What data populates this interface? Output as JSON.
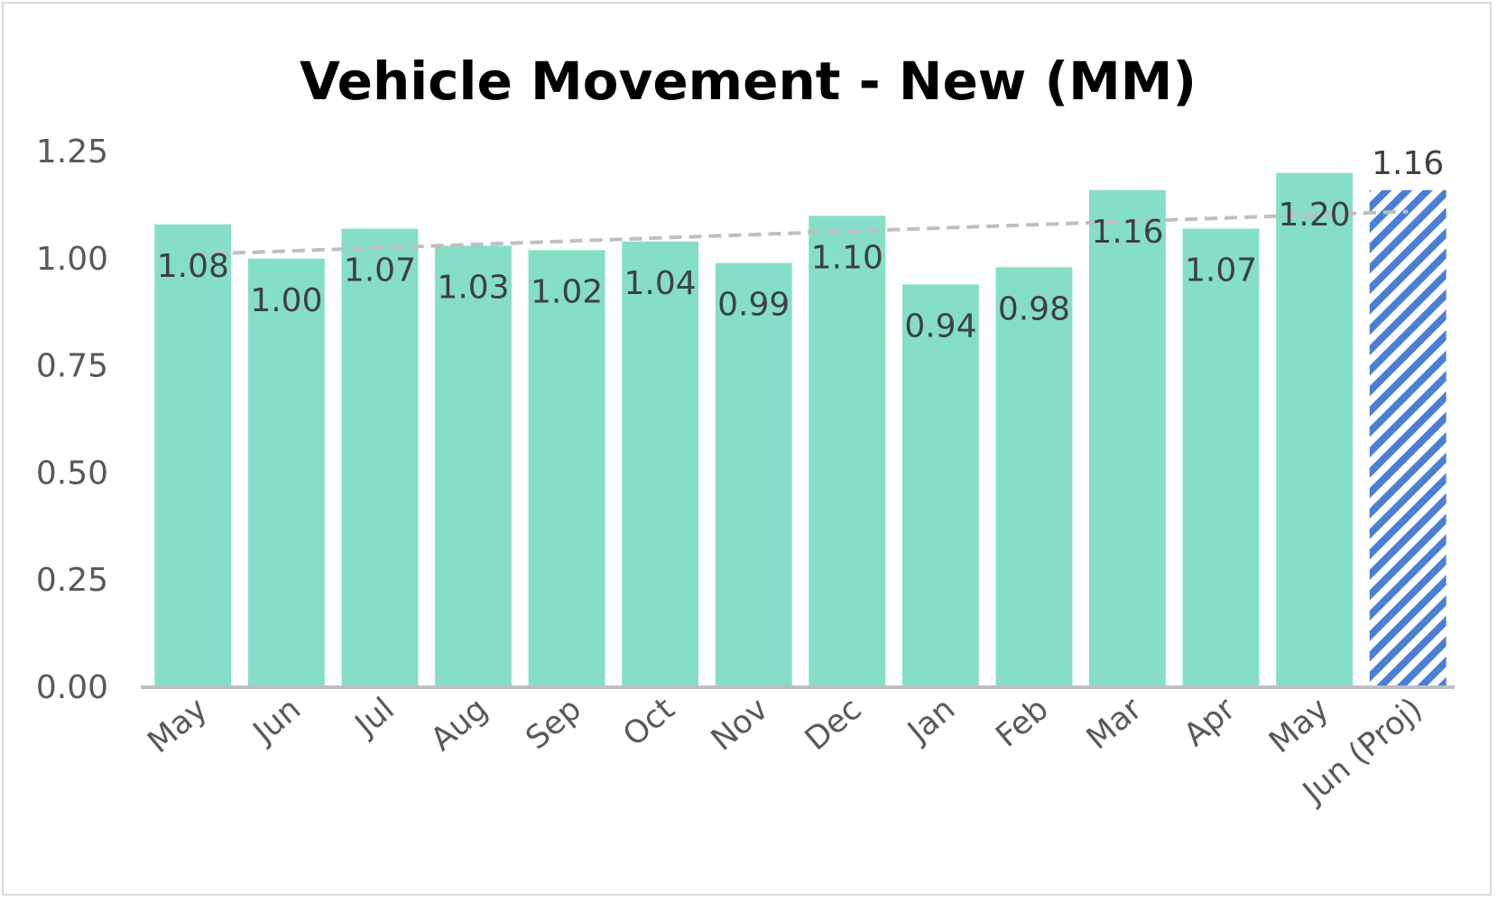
{
  "chart_data": {
    "type": "bar",
    "title": "Vehicle Movement - New (MM)",
    "xlabel": "",
    "ylabel": "",
    "ylim": [
      0,
      1.25
    ],
    "yticks": [
      "0.00",
      "0.25",
      "0.50",
      "0.75",
      "1.00",
      "1.25"
    ],
    "categories": [
      "May",
      "Jun",
      "Jul",
      "Aug",
      "Sep",
      "Oct",
      "Nov",
      "Dec",
      "Jan",
      "Feb",
      "Mar",
      "Apr",
      "May",
      "Jun (Proj)"
    ],
    "values": [
      1.08,
      1.0,
      1.07,
      1.03,
      1.02,
      1.04,
      0.99,
      1.1,
      0.94,
      0.98,
      1.16,
      1.07,
      1.2,
      1.16
    ],
    "value_labels": [
      "1.08",
      "1.00",
      "1.07",
      "1.03",
      "1.02",
      "1.04",
      "0.99",
      "1.10",
      "0.94",
      "0.98",
      "1.16",
      "1.07",
      "1.20",
      "1.16"
    ],
    "projected_index": 13,
    "trendline": {
      "style": "dashed",
      "start": 1.01,
      "end": 1.11
    },
    "grid": false,
    "legend": "none",
    "colors": {
      "bar": "#84dfc6",
      "projected": "#4a7fd6",
      "trend": "#bfbfbf",
      "axis": "#bfbfbf"
    }
  }
}
